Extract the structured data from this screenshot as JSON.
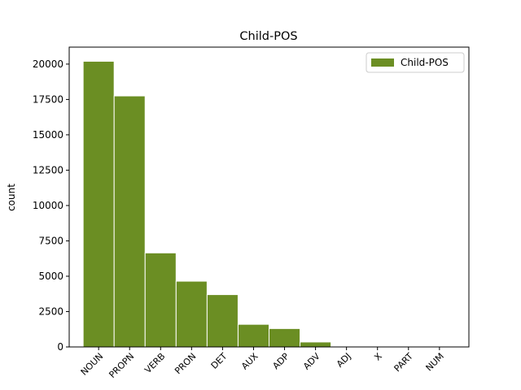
{
  "chart_data": {
    "type": "bar",
    "title": "Child-POS",
    "ylabel": "count",
    "categories": [
      "NOUN",
      "PROPN",
      "VERB",
      "PRON",
      "DET",
      "AUX",
      "ADP",
      "ADV",
      "ADJ",
      "X",
      "PART",
      "NUM"
    ],
    "series": [
      {
        "name": "Child-POS",
        "color": "#6b8e23",
        "values": [
          20200,
          17750,
          6650,
          4650,
          3700,
          1600,
          1300,
          350,
          30,
          10,
          5,
          5
        ]
      }
    ],
    "ylim": [
      0,
      21200
    ],
    "yticks": [
      0,
      2500,
      5000,
      7500,
      10000,
      12500,
      15000,
      17500,
      20000
    ],
    "legend": "upper right"
  }
}
